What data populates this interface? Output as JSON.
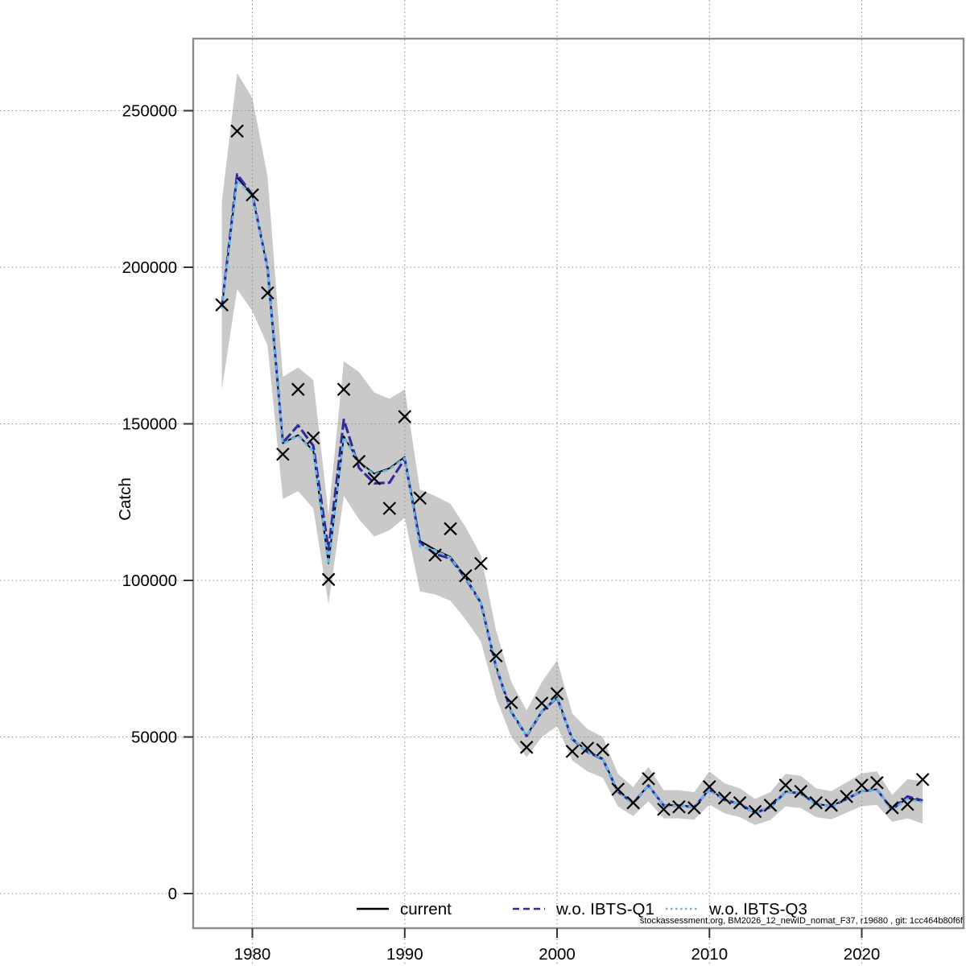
{
  "page": {
    "background": "#ffffff",
    "footer_credit": "stockassessment.org, BM2026_12_newID_nomat_F37, r19680 , git: 1cc464b80f6f"
  },
  "legend": {
    "items": [
      {
        "label": "current",
        "color": "#000000",
        "style": "solid"
      },
      {
        "label": "w.o. IBTS-Q1",
        "color": "#2f2a9d",
        "style": "dashed"
      },
      {
        "label": "w.o. IBTS-Q3",
        "color": "#63b8e8",
        "style": "dotted"
      }
    ]
  },
  "colors": {
    "band": "#c9c9c9",
    "current": "#000000",
    "wo_ibts_q1": "#2f2a9d",
    "wo_ibts_q3": "#63b8e8",
    "marker": "#000000",
    "frame": "#8c8c8c",
    "grid": "#8f8f8f",
    "tick": "#333333"
  },
  "chart_data": {
    "type": "line",
    "title": "",
    "xlabel": "",
    "ylabel": "Catch",
    "grid": "dotted, full-canvas",
    "legend_position": "bottom-center-inside",
    "x_ticks": [
      1980,
      1990,
      2000,
      2010,
      2020
    ],
    "y_ticks": [
      0,
      50000,
      100000,
      150000,
      200000,
      250000
    ],
    "x_range": [
      1976.1,
      2026.7
    ],
    "y_range": [
      -11000,
      273000
    ],
    "years": [
      1978,
      1979,
      1980,
      1981,
      1982,
      1983,
      1984,
      1985,
      1986,
      1987,
      1988,
      1989,
      1990,
      1991,
      1992,
      1993,
      1994,
      1995,
      1996,
      1997,
      1998,
      1999,
      2000,
      2001,
      2002,
      2003,
      2004,
      2005,
      2006,
      2007,
      2008,
      2009,
      2010,
      2011,
      2012,
      2013,
      2014,
      2015,
      2016,
      2017,
      2018,
      2019,
      2020,
      2021,
      2022,
      2023,
      2024
    ],
    "observed_markers": [
      188000,
      243500,
      223100,
      191800,
      140300,
      161000,
      145500,
      100300,
      161000,
      138000,
      132500,
      123000,
      152300,
      126300,
      108100,
      116500,
      101500,
      105400,
      75900,
      61000,
      46700,
      60800,
      63800,
      45400,
      46400,
      45900,
      33300,
      29000,
      36700,
      26900,
      27700,
      27400,
      34100,
      30500,
      29000,
      26200,
      28200,
      34600,
      32600,
      29000,
      28200,
      31000,
      34600,
      35400,
      27400,
      28500,
      36400
    ],
    "series": [
      {
        "name": "current",
        "values": [
          187000,
          228600,
          223000,
          199500,
          143800,
          146400,
          141400,
          105500,
          146000,
          137900,
          134100,
          135800,
          139400,
          112600,
          109800,
          107500,
          101000,
          93000,
          72600,
          58200,
          50500,
          58200,
          62800,
          49500,
          45400,
          43100,
          32600,
          29000,
          34600,
          28200,
          28200,
          27700,
          33300,
          30000,
          28700,
          25800,
          27700,
          32600,
          32100,
          28700,
          27900,
          30300,
          32800,
          33300,
          26900,
          30500,
          29500
        ]
      },
      {
        "name": "w.o. IBTS-Q1",
        "values": [
          187300,
          229700,
          223200,
          199700,
          144000,
          149500,
          143000,
          109700,
          151300,
          135900,
          131000,
          131200,
          138800,
          112100,
          108400,
          107000,
          100600,
          92800,
          72300,
          58000,
          50300,
          58100,
          62600,
          49300,
          45200,
          42900,
          32500,
          28900,
          34500,
          28100,
          28100,
          27600,
          33200,
          29900,
          28600,
          25700,
          27600,
          32500,
          32000,
          28600,
          27800,
          30200,
          32700,
          33200,
          26800,
          31000,
          29700
        ]
      },
      {
        "name": "w.o. IBTS-Q3",
        "values": [
          186800,
          227700,
          222800,
          199300,
          143600,
          146200,
          141200,
          105100,
          145800,
          137700,
          133800,
          135500,
          139100,
          110800,
          109600,
          107200,
          100800,
          92900,
          72500,
          58100,
          50400,
          58100,
          62700,
          49400,
          45300,
          43000,
          32500,
          28900,
          34500,
          28100,
          28100,
          27600,
          33200,
          29900,
          28600,
          25700,
          27600,
          32500,
          32000,
          28600,
          27800,
          30200,
          32700,
          33200,
          26800,
          30200,
          29200
        ]
      }
    ],
    "confidence_band": {
      "lower": [
        161000,
        193000,
        186000,
        175000,
        126000,
        128500,
        123000,
        92500,
        127000,
        119500,
        114000,
        116000,
        120000,
        96500,
        95500,
        93500,
        87500,
        80500,
        62500,
        50000,
        43500,
        50000,
        53500,
        42500,
        39000,
        37000,
        27800,
        24700,
        29500,
        24000,
        24000,
        23600,
        28400,
        25600,
        24400,
        21900,
        23500,
        27800,
        27300,
        24400,
        23700,
        25800,
        27900,
        28300,
        22900,
        24000,
        22300
      ],
      "upper": [
        221000,
        262000,
        254000,
        229000,
        165000,
        168000,
        164000,
        121000,
        170000,
        166500,
        160000,
        158000,
        161000,
        129000,
        127000,
        124500,
        117000,
        108000,
        84000,
        67500,
        58500,
        67500,
        74500,
        57500,
        52500,
        50000,
        38200,
        34000,
        40500,
        33000,
        33000,
        32400,
        39000,
        35200,
        33600,
        30200,
        32400,
        38200,
        37600,
        33600,
        32700,
        35500,
        38400,
        39000,
        31500,
        36500,
        35900
      ]
    }
  }
}
